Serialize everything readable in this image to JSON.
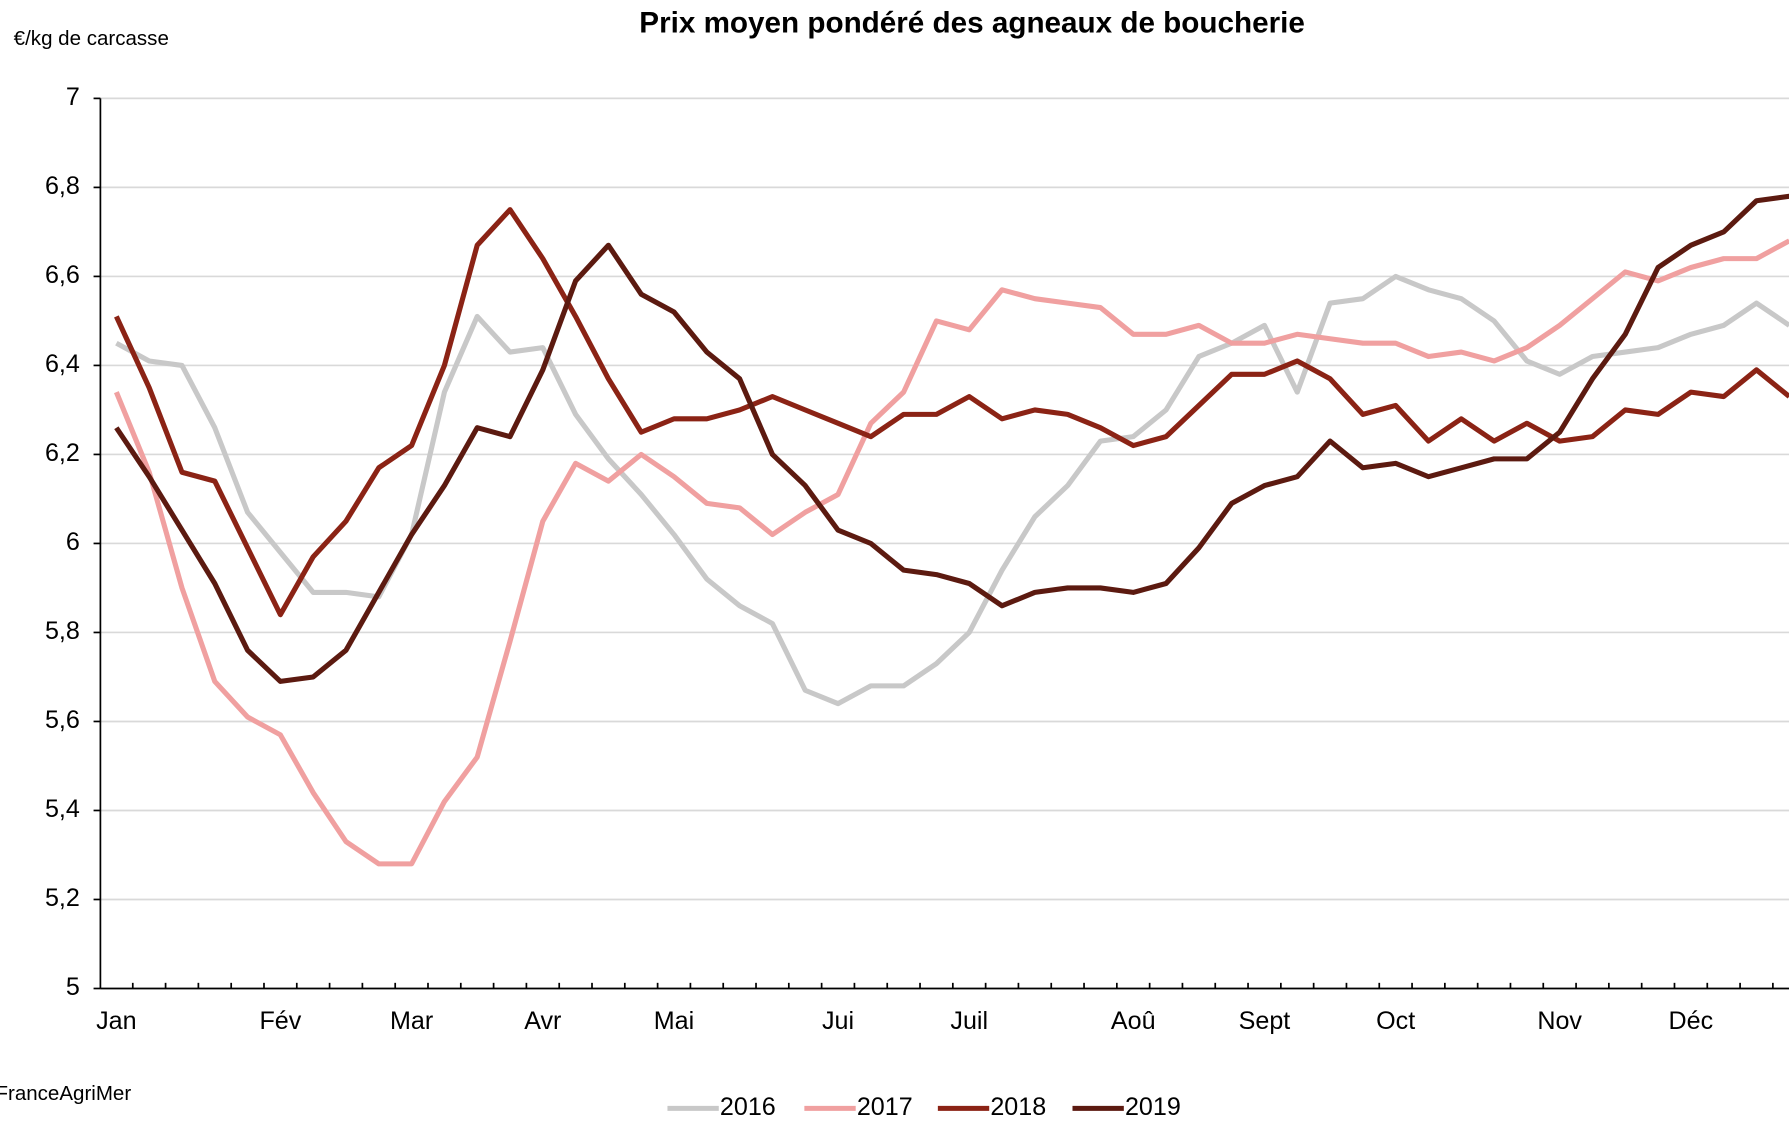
{
  "chart_data": {
    "type": "line",
    "title": "Prix moyen pondéré des agneaux de boucherie",
    "y_label": "€/kg de carcasse",
    "source": "FranceAgriMer",
    "categories": [
      "Jan",
      null,
      null,
      null,
      null,
      "Fév",
      null,
      null,
      null,
      "Mar",
      null,
      null,
      null,
      "Avr",
      null,
      null,
      null,
      "Mai",
      null,
      null,
      null,
      null,
      "Jui",
      null,
      null,
      null,
      "Juil",
      null,
      null,
      null,
      null,
      "Aoû",
      null,
      null,
      null,
      "Sept",
      null,
      null,
      null,
      "Oct",
      null,
      null,
      null,
      null,
      "Nov",
      null,
      null,
      null,
      "Déc",
      null,
      null,
      null
    ],
    "series": [
      {
        "name": "2016",
        "color": "#c8c8c8",
        "values": [
          6.45,
          6.41,
          6.4,
          6.26,
          6.07,
          5.98,
          5.89,
          5.89,
          5.88,
          6.02,
          6.34,
          6.51,
          6.43,
          6.44,
          6.29,
          6.19,
          6.11,
          6.02,
          5.92,
          5.86,
          5.82,
          5.67,
          5.64,
          5.68,
          5.68,
          5.73,
          5.8,
          5.94,
          6.06,
          6.13,
          6.23,
          6.24,
          6.3,
          6.42,
          6.45,
          6.49,
          6.34,
          6.54,
          6.55,
          6.6,
          6.57,
          6.55,
          6.5,
          6.41,
          6.38,
          6.42,
          6.43,
          6.44,
          6.47,
          6.49,
          6.54,
          6.49
        ]
      },
      {
        "name": "2017",
        "color": "#f0a0a0",
        "values": [
          6.34,
          6.16,
          5.9,
          5.69,
          5.61,
          5.57,
          5.44,
          5.33,
          5.28,
          5.28,
          5.42,
          5.52,
          5.78,
          6.05,
          6.18,
          6.14,
          6.2,
          6.15,
          6.09,
          6.08,
          6.02,
          6.07,
          6.11,
          6.27,
          6.34,
          6.5,
          6.48,
          6.57,
          6.55,
          6.54,
          6.53,
          6.47,
          6.47,
          6.49,
          6.45,
          6.45,
          6.47,
          6.46,
          6.45,
          6.45,
          6.42,
          6.43,
          6.41,
          6.44,
          6.49,
          6.55,
          6.61,
          6.59,
          6.62,
          6.64,
          6.64,
          6.68
        ]
      },
      {
        "name": "2018",
        "color": "#8b2315",
        "values": [
          6.51,
          6.35,
          6.16,
          6.14,
          5.99,
          5.84,
          5.97,
          6.05,
          6.17,
          6.22,
          6.4,
          6.67,
          6.75,
          6.64,
          6.51,
          6.37,
          6.25,
          6.28,
          6.28,
          6.3,
          6.33,
          6.3,
          6.27,
          6.24,
          6.29,
          6.29,
          6.33,
          6.28,
          6.3,
          6.29,
          6.26,
          6.22,
          6.24,
          6.31,
          6.38,
          6.38,
          6.41,
          6.37,
          6.29,
          6.31,
          6.23,
          6.28,
          6.23,
          6.27,
          6.23,
          6.24,
          6.3,
          6.29,
          6.34,
          6.33,
          6.39,
          6.33
        ]
      },
      {
        "name": "2019",
        "color": "#5c1a10",
        "values": [
          6.26,
          6.15,
          6.03,
          5.91,
          5.76,
          5.69,
          5.7,
          5.76,
          5.89,
          6.02,
          6.13,
          6.26,
          6.24,
          6.39,
          6.59,
          6.67,
          6.56,
          6.52,
          6.43,
          6.37,
          6.2,
          6.13,
          6.03,
          6.0,
          5.94,
          5.93,
          5.91,
          5.86,
          5.89,
          5.9,
          5.9,
          5.89,
          5.91,
          5.99,
          6.09,
          6.13,
          6.15,
          6.23,
          6.17,
          6.18,
          6.15,
          6.17,
          6.19,
          6.19,
          6.25,
          6.37,
          6.47,
          6.62,
          6.67,
          6.7,
          6.77,
          6.78
        ]
      }
    ],
    "ylim": [
      5,
      7
    ],
    "yticks": [
      5,
      {
        "value": 5.2,
        "label": "5,2"
      },
      {
        "value": 5.4,
        "label": "5,4"
      },
      {
        "value": 5.6,
        "label": "5,6"
      },
      {
        "value": 5.8,
        "label": "5,8"
      },
      6,
      {
        "value": 6.2,
        "label": "6,2"
      },
      {
        "value": 6.4,
        "label": "6,4"
      },
      {
        "value": 6.6,
        "label": "6,6"
      },
      {
        "value": 6.8,
        "label": "6,8"
      },
      7
    ],
    "grid": true,
    "legend": "bottom"
  }
}
